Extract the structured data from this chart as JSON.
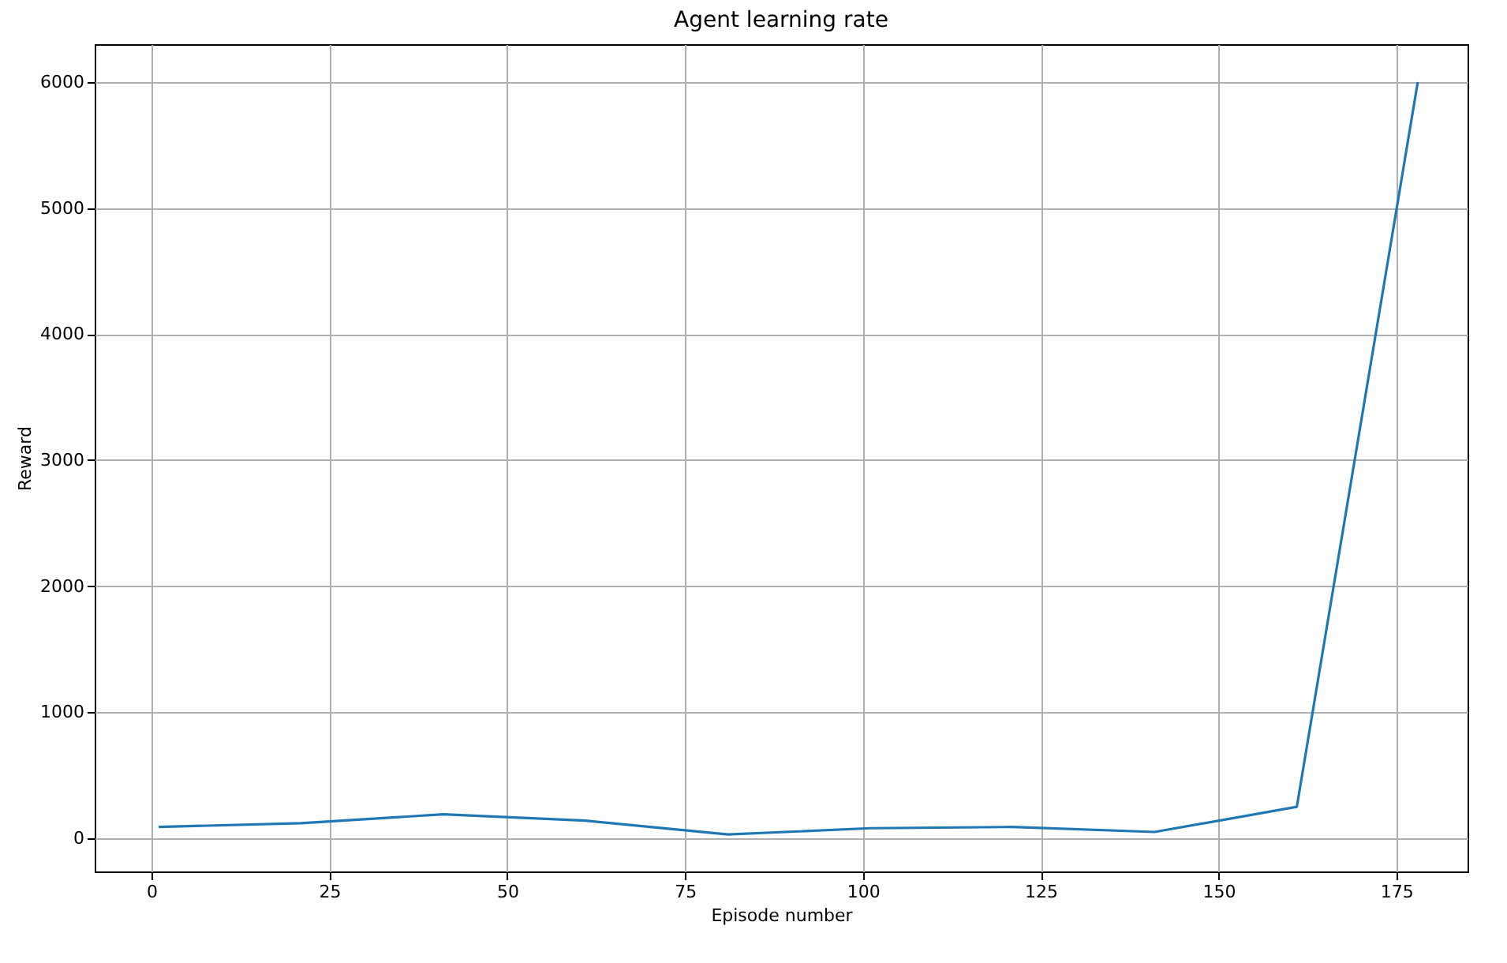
{
  "chart_data": {
    "type": "line",
    "title": "Agent learning rate",
    "xlabel": "Episode number",
    "ylabel": "Reward",
    "x": [
      1,
      21,
      41,
      61,
      81,
      101,
      121,
      141,
      161,
      178
    ],
    "series": [
      {
        "color": "#1f77b4",
        "values": [
          90,
          120,
          190,
          140,
          30,
          80,
          90,
          50,
          250,
          6000
        ]
      }
    ],
    "xlim": [
      -8,
      185
    ],
    "xticks": [
      0,
      25,
      50,
      75,
      100,
      125,
      150,
      175
    ],
    "ylim": [
      -263,
      6300
    ],
    "yticks": [
      0,
      1000,
      2000,
      3000,
      4000,
      5000,
      6000
    ],
    "grid": true,
    "marker": "none",
    "line_style": "solid"
  }
}
